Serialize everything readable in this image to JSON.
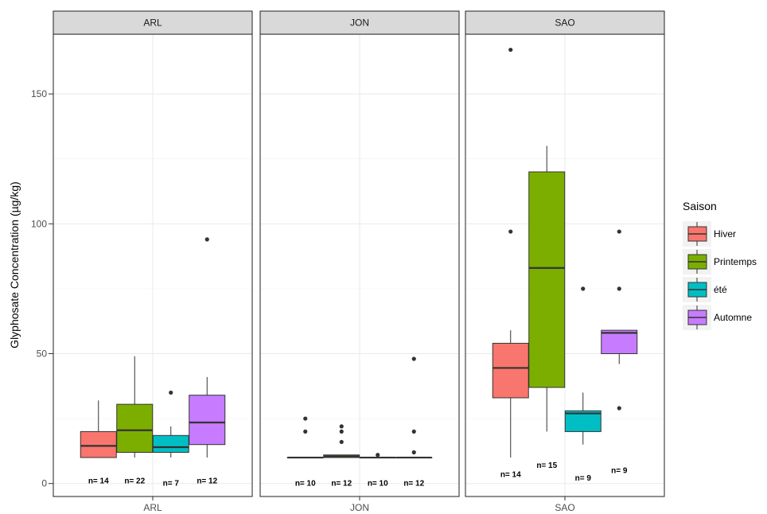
{
  "chart_data": {
    "type": "boxplot",
    "ylabel": "Glyphosate Concentration (µg/kg)",
    "xlabel": "",
    "ylim": [
      -5,
      173
    ],
    "yticks": [
      0,
      50,
      100,
      150
    ],
    "grid": true,
    "legend": {
      "title": "Saison",
      "placement": "right",
      "entries": [
        {
          "label": "Hiver",
          "color": "#F8766D"
        },
        {
          "label": "Printemps",
          "color": "#7CAE00"
        },
        {
          "label": "été",
          "color": "#00BFC4"
        },
        {
          "label": "Automne",
          "color": "#C77CFF"
        }
      ]
    },
    "panels": [
      {
        "name": "ARL",
        "x_tick": "ARL",
        "boxes": [
          {
            "season": "Hiver",
            "q1": 10,
            "median": 14.5,
            "q3": 20,
            "lower": 10,
            "upper": 32,
            "outliers": [],
            "n_label": "n= 14",
            "label_y": 1
          },
          {
            "season": "Printemps",
            "q1": 12,
            "median": 20.5,
            "q3": 30.5,
            "lower": 10,
            "upper": 49,
            "outliers": [],
            "n_label": "n= 22",
            "label_y": 1
          },
          {
            "season": "été",
            "q1": 12,
            "median": 14,
            "q3": 18.5,
            "lower": 10,
            "upper": 22,
            "outliers": [
              35
            ],
            "n_label": "n= 7",
            "label_y": 0
          },
          {
            "season": "Automne",
            "q1": 15,
            "median": 23.5,
            "q3": 34,
            "lower": 10,
            "upper": 41,
            "outliers": [
              94
            ],
            "n_label": "n= 12",
            "label_y": 1
          }
        ]
      },
      {
        "name": "JON",
        "x_tick": "JON",
        "boxes": [
          {
            "season": "Hiver",
            "q1": 10,
            "median": 10,
            "q3": 10,
            "lower": 10,
            "upper": 10,
            "outliers": [
              20,
              25
            ],
            "n_label": "n= 10",
            "label_y": 0
          },
          {
            "season": "Printemps",
            "q1": 10,
            "median": 10.5,
            "q3": 11,
            "lower": 10,
            "upper": 11,
            "outliers": [
              16,
              20,
              22
            ],
            "n_label": "n= 12",
            "label_y": 0
          },
          {
            "season": "été",
            "q1": 10,
            "median": 10,
            "q3": 10,
            "lower": 10,
            "upper": 10,
            "outliers": [
              11
            ],
            "n_label": "n= 10",
            "label_y": 0
          },
          {
            "season": "Automne",
            "q1": 10,
            "median": 10,
            "q3": 10,
            "lower": 10,
            "upper": 10,
            "outliers": [
              12,
              20,
              48
            ],
            "n_label": "n= 12",
            "label_y": 0
          }
        ]
      },
      {
        "name": "SAO",
        "x_tick": "SAO",
        "boxes": [
          {
            "season": "Hiver",
            "q1": 33,
            "median": 44.5,
            "q3": 54,
            "lower": 10,
            "upper": 59,
            "outliers": [
              97,
              167
            ],
            "n_label": "n= 14",
            "label_y": 3.5
          },
          {
            "season": "Printemps",
            "q1": 37,
            "median": 83,
            "q3": 120,
            "lower": 20,
            "upper": 130,
            "outliers": [],
            "n_label": "n= 15",
            "label_y": 7
          },
          {
            "season": "été",
            "q1": 20,
            "median": 27,
            "q3": 28,
            "lower": 15,
            "upper": 35,
            "outliers": [
              75
            ],
            "n_label": "n= 9",
            "label_y": 2
          },
          {
            "season": "Automne",
            "q1": 50,
            "median": 58,
            "q3": 59,
            "lower": 46,
            "upper": 59,
            "outliers": [
              29,
              75,
              97
            ],
            "n_label": "n= 9",
            "label_y": 5
          }
        ]
      }
    ]
  }
}
